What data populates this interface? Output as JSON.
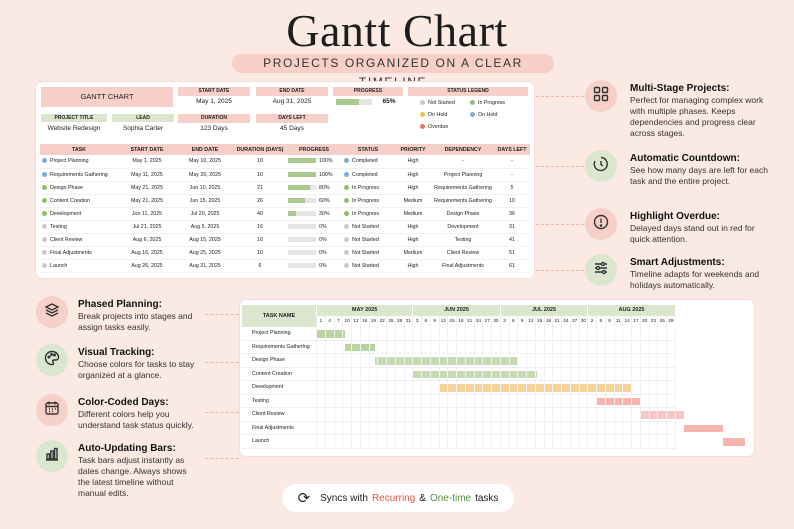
{
  "header": {
    "title": "Gantt Chart",
    "subtitle": "PROJECTS ORGANIZED ON A CLEAR TIMELINE"
  },
  "summary": {
    "box_title": "GANTT CHART",
    "start_date_label": "START DATE",
    "start_date": "May 1, 2025",
    "end_date_label": "END DATE",
    "end_date": "Aug 31, 2025",
    "progress_label": "PROGRESS",
    "progress_value": "65%",
    "progress_fraction": 0.65,
    "project_title_label": "PROJECT TITLE",
    "project_title": "Website Redesign",
    "lead_label": "LEAD",
    "lead": "Sophia Carter",
    "duration_label": "DURATION",
    "duration": "123 Days",
    "days_left_label": "DAYS LEFT",
    "days_left": "45 Days",
    "legend_label": "STATUS LEGEND",
    "legend": [
      {
        "label": "Not Started",
        "color": "#c9c9c9"
      },
      {
        "label": "In Progress",
        "color": "#8fbf6a"
      },
      {
        "label": "On Hold",
        "color": "#f2c14e"
      },
      {
        "label": "On Hold",
        "color": "#7ab0d8"
      },
      {
        "label": "Overdue",
        "color": "#e57a5a"
      }
    ]
  },
  "table": {
    "headers": [
      "TASK",
      "START DATE",
      "END DATE",
      "DURATION (DAYS)",
      "PROGRESS",
      "STATUS",
      "PRIORITY",
      "DEPENDENCY",
      "DAYS LEFT"
    ],
    "rows": [
      {
        "task": "Project Planning",
        "start": "May 1, 2025",
        "end": "May 10, 2025",
        "duration": "10",
        "progress": "100%",
        "pct": 1.0,
        "status": "Completed",
        "status_color": "#7ab0d8",
        "priority": "High",
        "dependency": "-",
        "days_left": "-",
        "dot": "#7ab0d8"
      },
      {
        "task": "Requirements Gathering",
        "start": "May 11, 2025",
        "end": "May 20, 2025",
        "duration": "10",
        "progress": "100%",
        "pct": 1.0,
        "status": "Completed",
        "status_color": "#7ab0d8",
        "priority": "High",
        "dependency": "Project Planning",
        "days_left": "-",
        "dot": "#7ab0d8"
      },
      {
        "task": "Design Phase",
        "start": "May 21, 2025",
        "end": "Jun 10, 2025",
        "duration": "21",
        "progress": "80%",
        "pct": 0.8,
        "status": "In Progress",
        "status_color": "#8fbf6a",
        "priority": "High",
        "dependency": "Requirements Gathering",
        "days_left": "5",
        "dot": "#8fbf6a"
      },
      {
        "task": "Content Creation",
        "start": "May 21, 2025",
        "end": "Jun 15, 2025",
        "duration": "26",
        "progress": "60%",
        "pct": 0.6,
        "status": "In Progress",
        "status_color": "#8fbf6a",
        "priority": "Medium",
        "dependency": "Requirements Gathering",
        "days_left": "10",
        "dot": "#8fbf6a"
      },
      {
        "task": "Development",
        "start": "Jun 11, 2025",
        "end": "Jul 20, 2025",
        "duration": "40",
        "progress": "30%",
        "pct": 0.3,
        "status": "In Progress",
        "status_color": "#8fbf6a",
        "priority": "Medium",
        "dependency": "Design Phase",
        "days_left": "36",
        "dot": "#8fbf6a"
      },
      {
        "task": "Testing",
        "start": "Jul 21, 2025",
        "end": "Aug 5, 2025",
        "duration": "16",
        "progress": "0%",
        "pct": 0.0,
        "status": "Not Started",
        "status_color": "#c9c9c9",
        "priority": "High",
        "dependency": "Development",
        "days_left": "31",
        "dot": "#c9c9c9"
      },
      {
        "task": "Client Review",
        "start": "Aug 6, 2025",
        "end": "Aug 15, 2025",
        "duration": "10",
        "progress": "0%",
        "pct": 0.0,
        "status": "Not Started",
        "status_color": "#c9c9c9",
        "priority": "High",
        "dependency": "Testing",
        "days_left": "41",
        "dot": "#c9c9c9"
      },
      {
        "task": "Final Adjustments",
        "start": "Aug 16, 2025",
        "end": "Aug 25, 2025",
        "duration": "10",
        "progress": "0%",
        "pct": 0.0,
        "status": "Not Started",
        "status_color": "#c9c9c9",
        "priority": "Medium",
        "dependency": "Client Review",
        "days_left": "51",
        "dot": "#c9c9c9"
      },
      {
        "task": "Launch",
        "start": "Aug 26, 2025",
        "end": "Aug 31, 2025",
        "duration": "6",
        "progress": "0%",
        "pct": 0.0,
        "status": "Not Started",
        "status_color": "#c9c9c9",
        "priority": "High",
        "dependency": "Final Adjustments",
        "days_left": "61",
        "dot": "#c9c9c9"
      }
    ]
  },
  "features_right": [
    {
      "icon": "grid-icon",
      "title": "Multi-Stage Projects:",
      "desc": "Perfect for managing complex work with multiple phases. Keeps dependencies and progress clear across stages.",
      "bg": "#f6d0c8"
    },
    {
      "icon": "countdown-icon",
      "title": "Automatic Countdown:",
      "desc": "See how many days are left for each task and the entire project.",
      "bg": "#dbe6cf"
    },
    {
      "icon": "alert-icon",
      "title": "Highlight Overdue:",
      "desc": "Delayed days stand out in red for quick attention.",
      "bg": "#f6d0c8"
    },
    {
      "icon": "sliders-icon",
      "title": "Smart Adjustments:",
      "desc": "Timeline adapts for weekends and holidays automatically.",
      "bg": "#dbe6cf"
    }
  ],
  "features_left": [
    {
      "icon": "layers-icon",
      "title": "Phased Planning:",
      "desc": "Break projects into stages and assign tasks easily.",
      "bg": "#f6d0c8"
    },
    {
      "icon": "palette-icon",
      "title": "Visual Tracking:",
      "desc": "Choose colors for tasks to stay organized at a glance.",
      "bg": "#dbe6cf"
    },
    {
      "icon": "calendar-icon",
      "title": "Color-Coded Days:",
      "desc": "Different colors help you understand task status quickly.",
      "bg": "#f6d0c8"
    },
    {
      "icon": "bar-chart-icon",
      "title": "Auto-Updating Bars:",
      "desc": "Task bars adjust instantly as dates change. Always shows the latest timeline without manual edits.",
      "bg": "#dbe6cf"
    }
  ],
  "gantt": {
    "task_header": "TASK NAME",
    "months": [
      {
        "label": "MAY 2025",
        "days": [
          "1",
          "4",
          "7",
          "10",
          "13",
          "16",
          "19",
          "22",
          "25",
          "28",
          "31"
        ]
      },
      {
        "label": "JUN 2025",
        "days": [
          "3",
          "6",
          "9",
          "12",
          "15",
          "18",
          "21",
          "24",
          "27",
          "30"
        ]
      },
      {
        "label": "JUL 2025",
        "days": [
          "3",
          "6",
          "9",
          "12",
          "15",
          "18",
          "21",
          "24",
          "27",
          "30"
        ]
      },
      {
        "label": "AUG 2025",
        "days": [
          "2",
          "5",
          "8",
          "11",
          "14",
          "17",
          "20",
          "23",
          "26",
          "29"
        ]
      }
    ],
    "tasks": [
      {
        "name": "Project Planning",
        "start_col": 0,
        "end_col": 3.3,
        "color": "#b9d3a3"
      },
      {
        "name": "Requirements Gathering",
        "start_col": 3.3,
        "end_col": 6.7,
        "color": "#b9d3a3"
      },
      {
        "name": "Design Phase",
        "start_col": 6.7,
        "end_col": 23.0,
        "color": "#c6dbb4"
      },
      {
        "name": "Content Creation",
        "start_col": 11.0,
        "end_col": 25.3,
        "color": "#c6dbb4"
      },
      {
        "name": "Development",
        "start_col": 14.0,
        "end_col": 36.0,
        "color": "#f6d39a"
      },
      {
        "name": "Testing",
        "start_col": 32.0,
        "end_col": 37.0,
        "color": "#f5b6b0"
      },
      {
        "name": "Client Review",
        "start_col": 37.0,
        "end_col": 42.0,
        "color": "#f7c7c2"
      },
      {
        "name": "Final Adjustments",
        "start_col": 42.0,
        "end_col": 46.5,
        "color": "#f5b6b0"
      },
      {
        "name": "Launch",
        "start_col": 46.5,
        "end_col": 49.0,
        "color": "#f5b6b0"
      }
    ]
  },
  "sync": {
    "prefix": "Syncs with",
    "recurring": "Recurring",
    "amp": "&",
    "onetime": "One-time",
    "suffix": "tasks"
  }
}
